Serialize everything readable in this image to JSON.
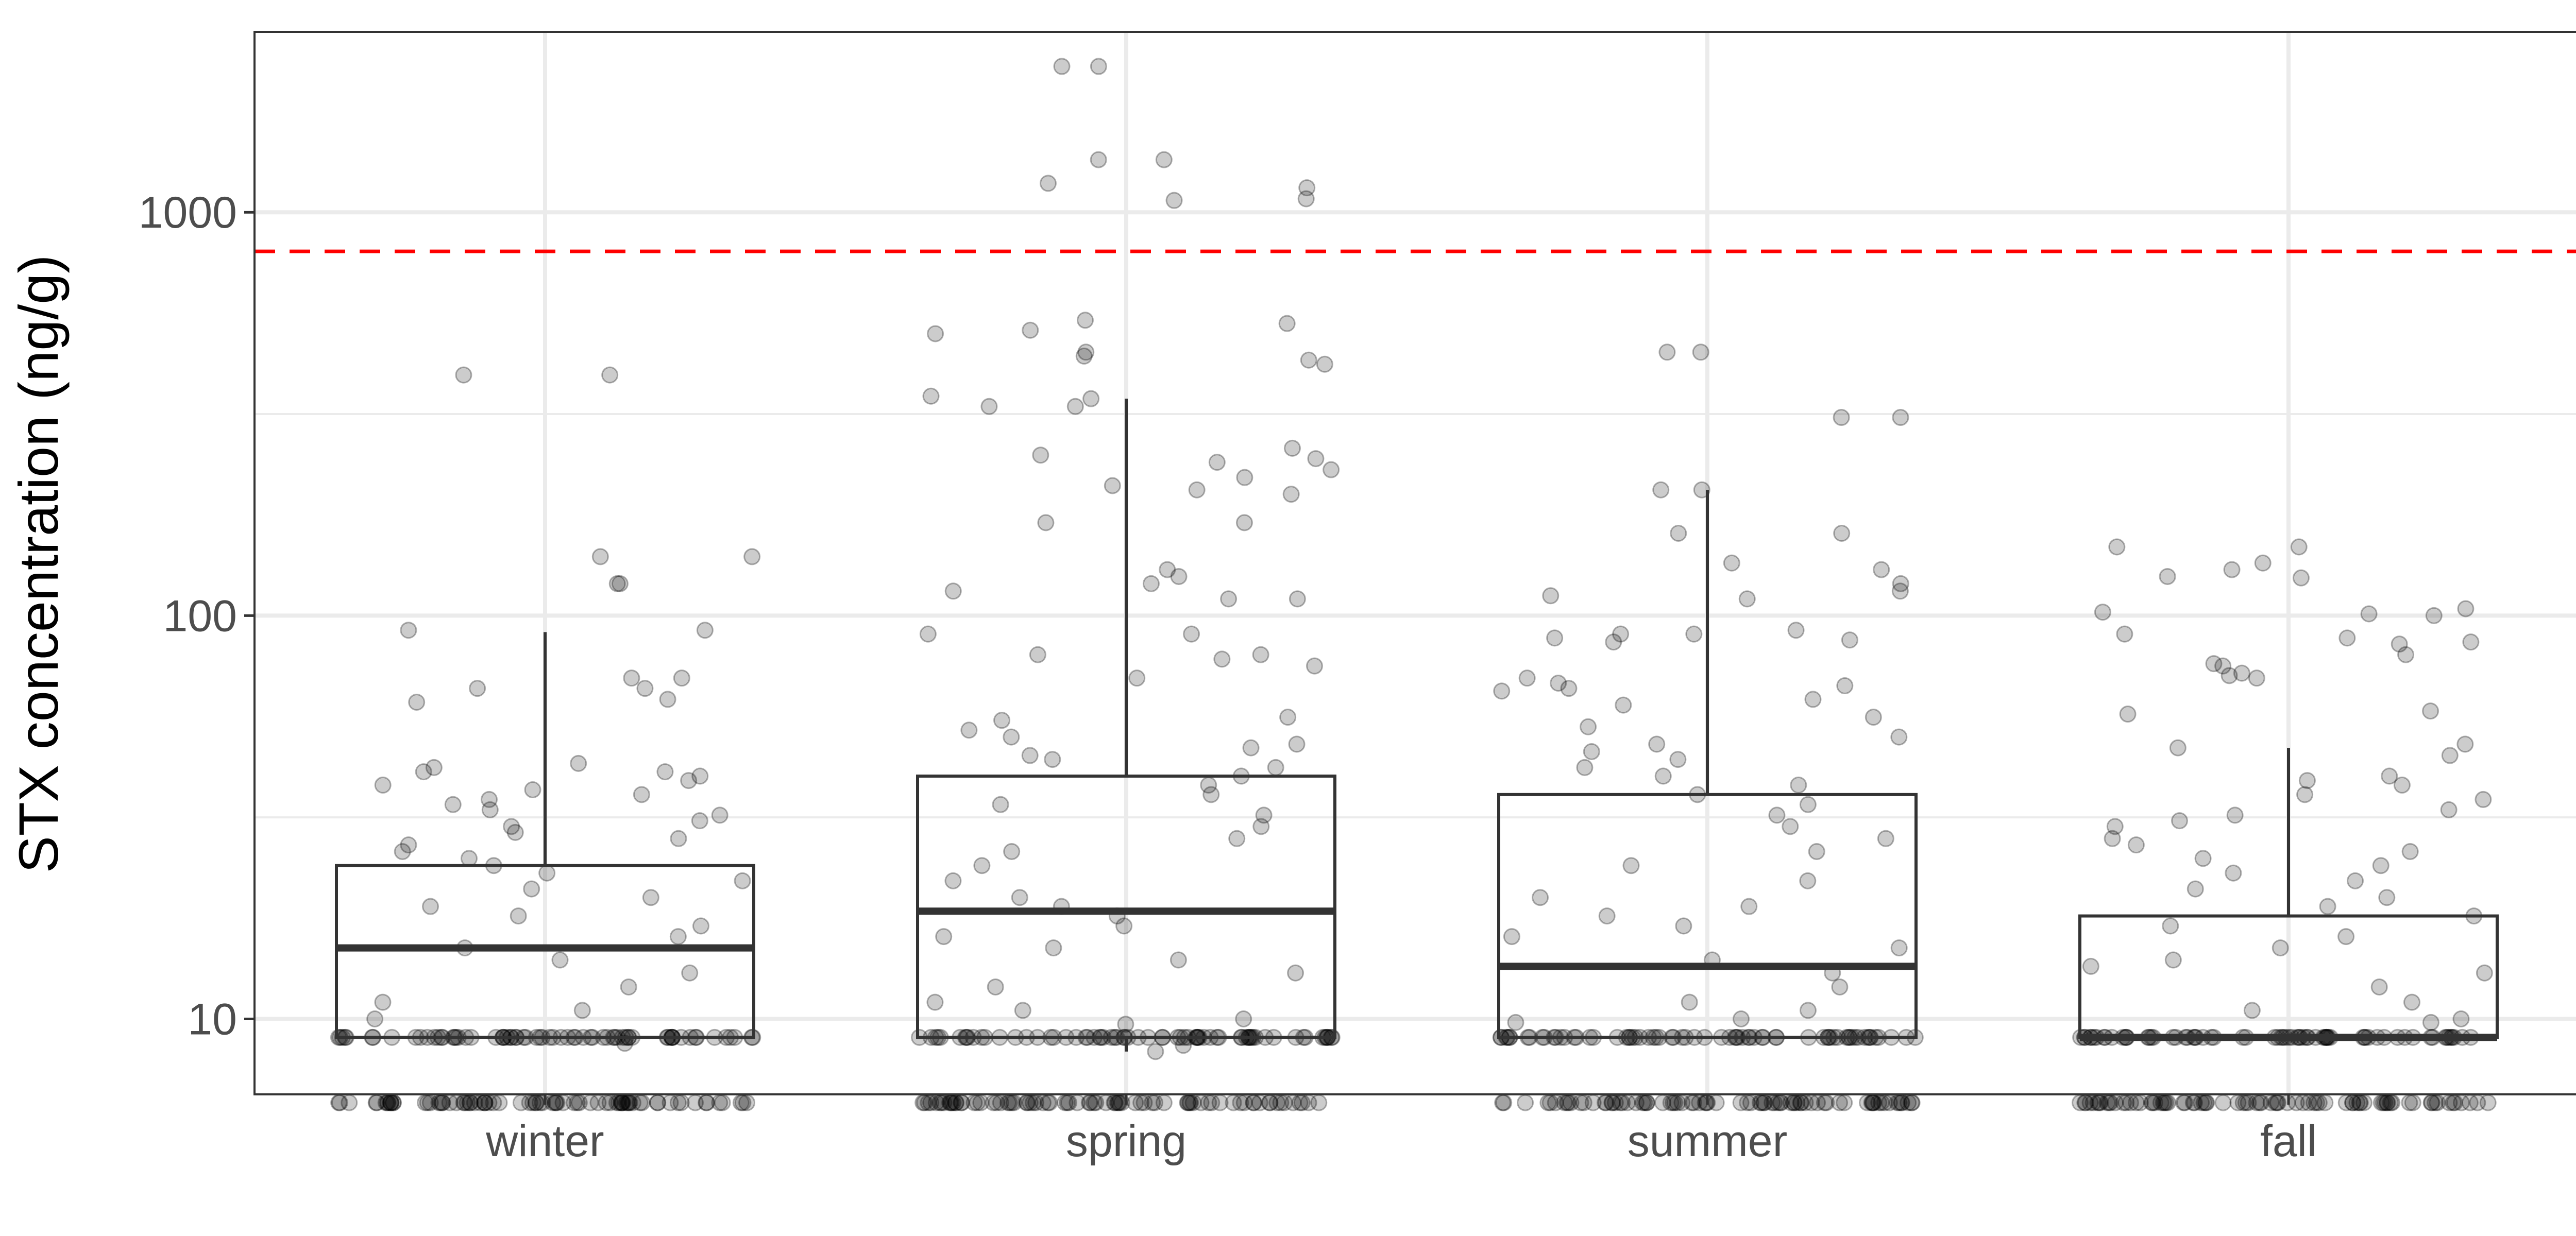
{
  "chart_data": {
    "type": "box",
    "title": "",
    "xlabel": "",
    "ylabel": "STX concentration (ng/g)",
    "y_scale": "log10",
    "ylim": [
      6.5,
      2800
    ],
    "yticks": [
      10,
      100,
      1000
    ],
    "ytick_labels": [
      "10",
      "100",
      "1000"
    ],
    "y_minor_gridlines": [
      31.6,
      316
    ],
    "grid": true,
    "categories": [
      "winter",
      "spring",
      "summer",
      "fall"
    ],
    "boxes": [
      {
        "category": "winter",
        "whisker_low": 9,
        "q1": 9,
        "median": 15,
        "q3": 24,
        "whisker_high": 91
      },
      {
        "category": "spring",
        "whisker_low": 8.3,
        "q1": 9,
        "median": 18.5,
        "q3": 40,
        "whisker_high": 345
      },
      {
        "category": "summer",
        "whisker_low": 9,
        "q1": 9,
        "median": 13.5,
        "q3": 36,
        "whisker_high": 205
      },
      {
        "category": "fall",
        "whisker_low": 9,
        "q1": 9,
        "median": 9,
        "q3": 18,
        "whisker_high": 47
      }
    ],
    "reference_line": {
      "y": 800,
      "color": "#ff0000",
      "style": "dashed"
    },
    "points": {
      "winter": [
        395,
        395,
        140,
        140,
        120,
        120,
        92,
        92,
        70,
        70,
        66,
        66,
        62,
        61,
        43,
        42,
        41,
        41,
        40,
        39,
        38,
        37,
        36,
        35,
        34,
        33,
        32,
        31,
        30,
        29,
        28,
        27,
        26,
        25,
        24,
        23,
        22,
        21,
        20,
        19,
        18,
        17,
        16,
        15,
        14,
        13,
        12,
        11,
        10.5,
        10,
        8.7
      ],
      "spring": [
        2300,
        2300,
        1350,
        1350,
        1180,
        1150,
        1080,
        1070,
        540,
        530,
        510,
        500,
        450,
        440,
        430,
        420,
        350,
        345,
        330,
        330,
        260,
        250,
        245,
        240,
        230,
        220,
        210,
        205,
        200,
        170,
        170,
        130,
        125,
        120,
        115,
        110,
        110,
        90,
        90,
        80,
        80,
        78,
        75,
        70,
        56,
        55,
        52,
        50,
        48,
        47,
        45,
        44,
        42,
        40,
        38,
        36,
        34,
        32,
        30,
        28,
        26,
        24,
        22,
        20,
        19,
        18,
        17,
        16,
        15,
        14,
        13,
        12,
        11,
        10.5,
        10,
        9.7,
        8.6,
        8.3
      ],
      "summer": [
        450,
        450,
        310,
        310,
        205,
        205,
        160,
        160,
        135,
        130,
        120,
        115,
        112,
        110,
        92,
        90,
        90,
        88,
        87,
        86,
        70,
        68,
        67,
        66,
        65,
        62,
        60,
        56,
        53,
        50,
        48,
        46,
        44,
        42,
        40,
        38,
        36,
        34,
        32,
        30,
        28,
        26,
        24,
        22,
        20,
        19,
        18,
        17,
        16,
        15,
        14,
        13,
        12,
        11,
        10.5,
        10,
        9.8
      ],
      "fall": [
        148,
        148,
        135,
        130,
        125,
        124,
        104,
        102,
        101,
        100,
        90,
        88,
        86,
        85,
        80,
        76,
        75,
        72,
        71,
        70,
        58,
        57,
        48,
        47,
        45,
        40,
        39,
        38,
        36,
        35,
        33,
        32,
        31,
        30,
        28,
        27,
        26,
        25,
        24,
        23,
        22,
        21,
        20,
        19,
        18,
        17,
        16,
        15,
        14,
        13.5,
        13,
        12,
        11,
        10.5,
        10,
        9.8
      ]
    },
    "censored_values": [
      9,
      6.2
    ]
  }
}
